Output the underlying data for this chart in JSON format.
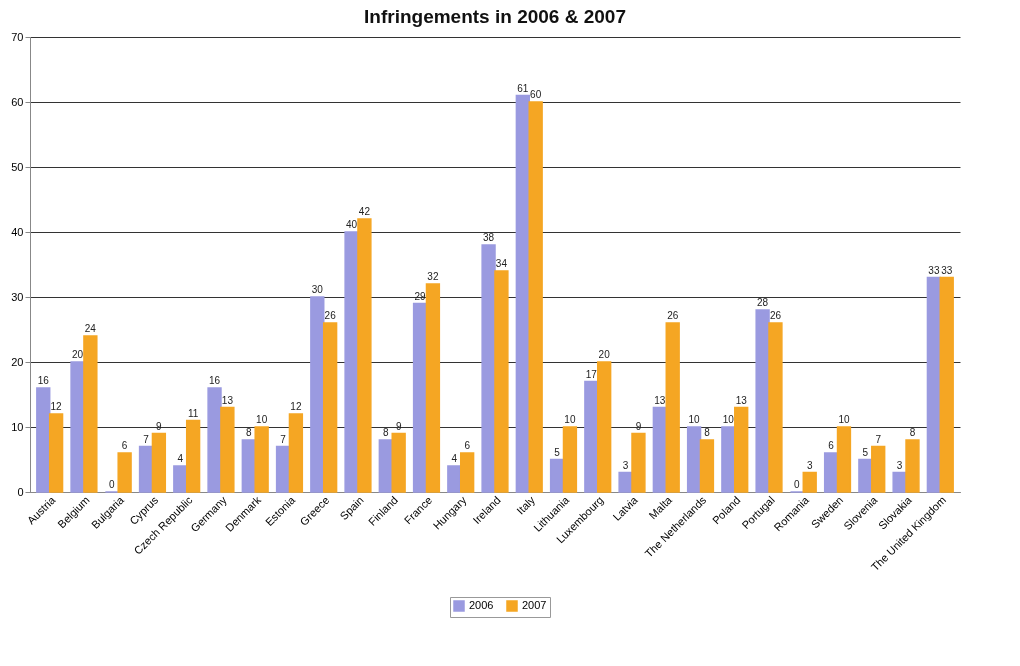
{
  "chart_data": {
    "type": "bar",
    "title": "Infringements in 2006 & 2007",
    "categories": [
      "Austria",
      "Belgium",
      "Bulgaria",
      "Cyprus",
      "Czech Republic",
      "Germany",
      "Denmark",
      "Estonia",
      "Greece",
      "Spain",
      "Finland",
      "France",
      "Hungary",
      "Ireland",
      "Italy",
      "Lithuania",
      "Luxembourg",
      "Latvia",
      "Malta",
      "The Netherlands",
      "Poland",
      "Portugal",
      "Romania",
      "Sweden",
      "Slovenia",
      "Slovakia",
      "The United Kingdom"
    ],
    "series": [
      {
        "name": "2006",
        "color": "#9a9ae0",
        "values": [
          16,
          20,
          0,
          7,
          4,
          16,
          8,
          7,
          30,
          40,
          8,
          29,
          4,
          38,
          61,
          5,
          17,
          3,
          13,
          10,
          10,
          28,
          0,
          6,
          5,
          3,
          33
        ]
      },
      {
        "name": "2007",
        "color": "#f5a623",
        "values": [
          12,
          24,
          6,
          9,
          11,
          13,
          10,
          12,
          26,
          42,
          9,
          32,
          6,
          34,
          60,
          10,
          20,
          9,
          26,
          8,
          13,
          26,
          3,
          10,
          7,
          8,
          33
        ]
      }
    ],
    "ylim": [
      0,
      70
    ],
    "yticks": [
      0,
      10,
      20,
      30,
      40,
      50,
      60,
      70
    ],
    "grid": "y",
    "legend": "bottom",
    "data_labels": true
  }
}
